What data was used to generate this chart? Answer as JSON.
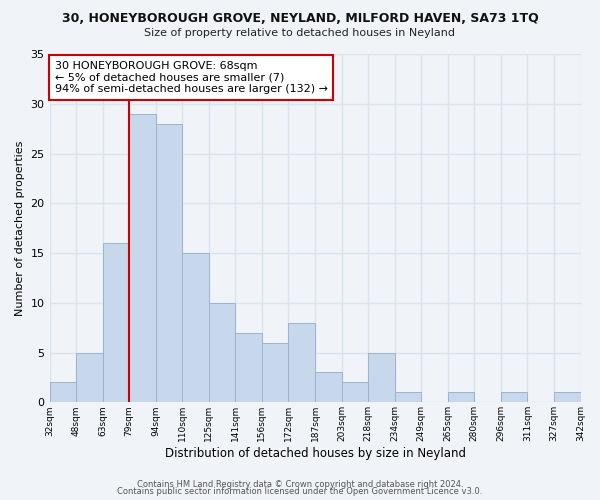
{
  "title": "30, HONEYBOROUGH GROVE, NEYLAND, MILFORD HAVEN, SA73 1TQ",
  "subtitle": "Size of property relative to detached houses in Neyland",
  "xlabel": "Distribution of detached houses by size in Neyland",
  "ylabel": "Number of detached properties",
  "bin_labels": [
    "32sqm",
    "48sqm",
    "63sqm",
    "79sqm",
    "94sqm",
    "110sqm",
    "125sqm",
    "141sqm",
    "156sqm",
    "172sqm",
    "187sqm",
    "203sqm",
    "218sqm",
    "234sqm",
    "249sqm",
    "265sqm",
    "280sqm",
    "296sqm",
    "311sqm",
    "327sqm",
    "342sqm"
  ],
  "bar_values": [
    2,
    5,
    16,
    29,
    28,
    15,
    10,
    7,
    6,
    8,
    3,
    2,
    5,
    1,
    0,
    1,
    0,
    1,
    0,
    1
  ],
  "bar_color": "#c8d8ec",
  "bar_edge_color": "#9ab4cc",
  "vline_x": 2.5,
  "vline_color": "#cc0000",
  "ylim": [
    0,
    35
  ],
  "yticks": [
    0,
    5,
    10,
    15,
    20,
    25,
    30,
    35
  ],
  "annotation_text": "30 HONEYBOROUGH GROVE: 68sqm\n← 5% of detached houses are smaller (7)\n94% of semi-detached houses are larger (132) →",
  "annotation_box_edgecolor": "#cc0000",
  "footer1": "Contains HM Land Registry data © Crown copyright and database right 2024.",
  "footer2": "Contains public sector information licensed under the Open Government Licence v3.0.",
  "background_color": "#f0f4f8",
  "grid_color": "#d8e4f0"
}
